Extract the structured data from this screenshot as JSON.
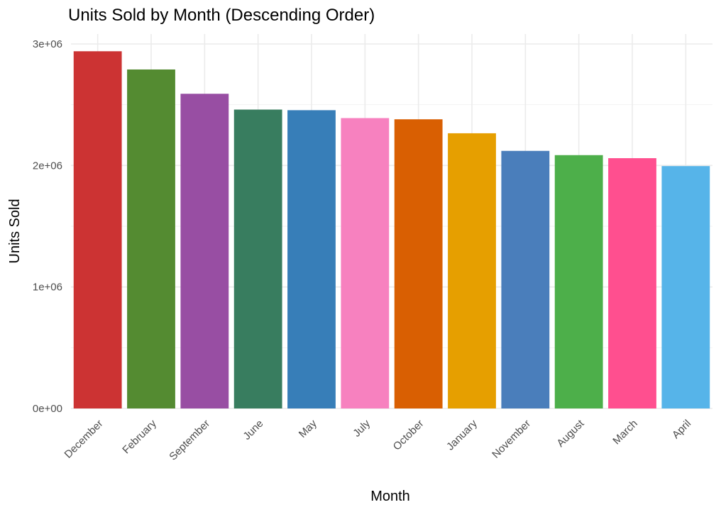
{
  "chart_data": {
    "type": "bar",
    "title": "Units Sold by Month (Descending Order)",
    "xlabel": "Month",
    "ylabel": "Units Sold",
    "categories": [
      "December",
      "February",
      "September",
      "June",
      "May",
      "July",
      "October",
      "January",
      "November",
      "August",
      "March",
      "April"
    ],
    "values": [
      2940000,
      2790000,
      2590000,
      2460000,
      2455000,
      2390000,
      2380000,
      2265000,
      2120000,
      2085000,
      2060000,
      1995000
    ],
    "colors": [
      "#CC3333",
      "#548B31",
      "#984EA3",
      "#387D5F",
      "#377EB8",
      "#F781BF",
      "#D95F02",
      "#E69F00",
      "#4A7EBB",
      "#4DAF4A",
      "#FF4F8F",
      "#56B4E9"
    ],
    "ylim": [
      0,
      3000000
    ],
    "yticks": [
      0,
      1000000,
      2000000,
      3000000
    ],
    "ytick_labels": [
      "0e+00",
      "1e+06",
      "2e+06",
      "3e+06"
    ],
    "grid": true,
    "legend": "none"
  }
}
